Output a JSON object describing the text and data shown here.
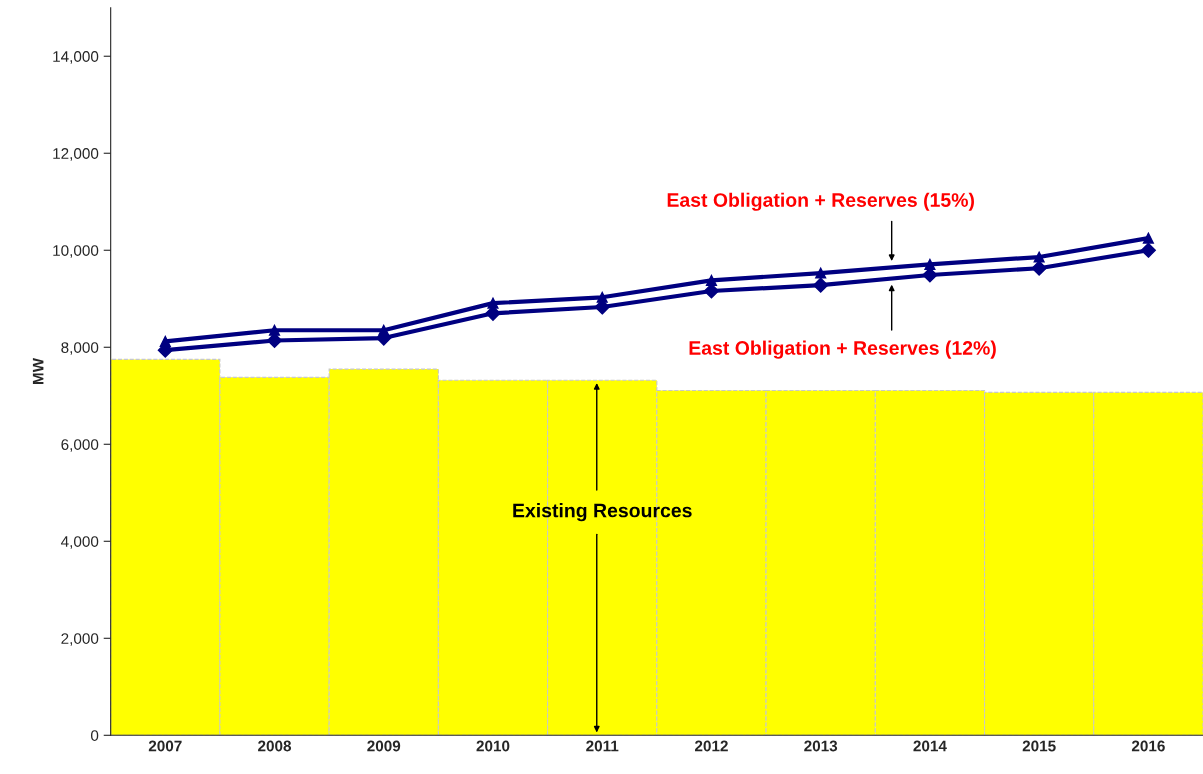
{
  "chart_data": {
    "type": "bar",
    "ylabel": "MW",
    "categories": [
      "2007",
      "2008",
      "2009",
      "2010",
      "2011",
      "2012",
      "2013",
      "2014",
      "2015",
      "2016"
    ],
    "series": [
      {
        "color": "#ffff00",
        "values": [
          7750,
          7380,
          7550,
          7320,
          7320,
          7110,
          7110,
          7110,
          7070,
          7070
        ]
      },
      {
        "type": "line",
        "color": "#000080",
        "marker": "triangle",
        "values": [
          8120,
          8350,
          8350,
          8910,
          9030,
          9380,
          9530,
          9710,
          9860,
          10250
        ]
      },
      {
        "type": "line",
        "color": "#000080",
        "marker": "diamond",
        "values": [
          7940,
          8140,
          8190,
          8700,
          8830,
          9160,
          9280,
          9490,
          9630,
          10000
        ]
      }
    ],
    "ylim": [
      0,
      15000
    ],
    "yticks": [
      {
        "value": 0,
        "label": "0"
      },
      {
        "value": 2000,
        "label": "2,000"
      },
      {
        "value": 4000,
        "label": "4,000"
      },
      {
        "value": 6000,
        "label": "6,000"
      },
      {
        "value": 8000,
        "label": "8,000"
      },
      {
        "value": 10000,
        "label": "10,000"
      },
      {
        "value": 12000,
        "label": "12,000"
      },
      {
        "value": 14000,
        "label": "14,000"
      }
    ],
    "grid": false,
    "legend": false,
    "annotations": [
      "East Obligation + Reserves (15%)",
      "East Obligation + Reserves (12%)",
      {
        "text": "Existing Resources",
        "x": "2011",
        "y": 7320
      }
    ]
  }
}
